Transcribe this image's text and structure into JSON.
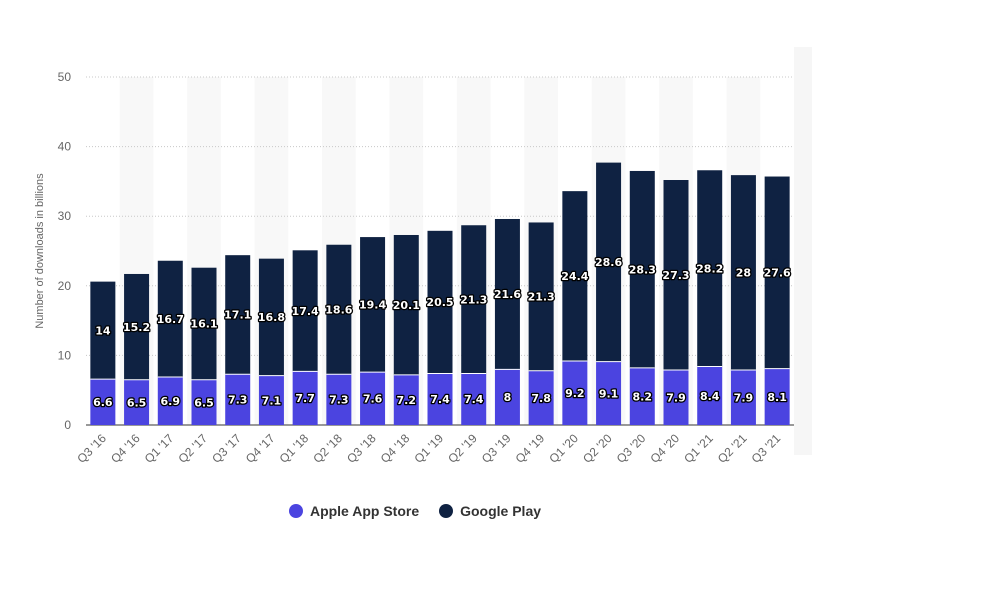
{
  "chart_data": {
    "type": "bar",
    "stacked": true,
    "categories": [
      "Q3 '16",
      "Q4 '16",
      "Q1 '17",
      "Q2 '17",
      "Q3 '17",
      "Q4 '17",
      "Q1 '18",
      "Q2 '18",
      "Q3 '18",
      "Q4 '18",
      "Q1 '19",
      "Q2 '19",
      "Q3 '19",
      "Q4 '19",
      "Q1 '20",
      "Q2 '20",
      "Q3 '20",
      "Q4 '20",
      "Q1 '21",
      "Q2 '21",
      "Q3 '21"
    ],
    "series": [
      {
        "name": "Apple App Store",
        "color": "#4b44e0",
        "values": [
          6.6,
          6.5,
          6.9,
          6.5,
          7.3,
          7.1,
          7.7,
          7.3,
          7.6,
          7.2,
          7.4,
          7.4,
          8,
          7.8,
          9.2,
          9.1,
          8.2,
          7.9,
          8.4,
          7.9,
          8.1
        ]
      },
      {
        "name": "Google Play",
        "color": "#0f2242",
        "values": [
          14,
          15.2,
          16.7,
          16.1,
          17.1,
          16.8,
          17.4,
          18.6,
          19.4,
          20.1,
          20.5,
          21.3,
          21.6,
          21.3,
          24.4,
          28.6,
          28.3,
          27.3,
          28.2,
          28,
          27.6
        ]
      }
    ],
    "ylabel": "Number of downloads in billions",
    "ylim": [
      0,
      50
    ],
    "yticks": [
      0,
      10,
      20,
      30,
      40,
      50
    ],
    "grid": true,
    "legend_position": "bottom"
  }
}
